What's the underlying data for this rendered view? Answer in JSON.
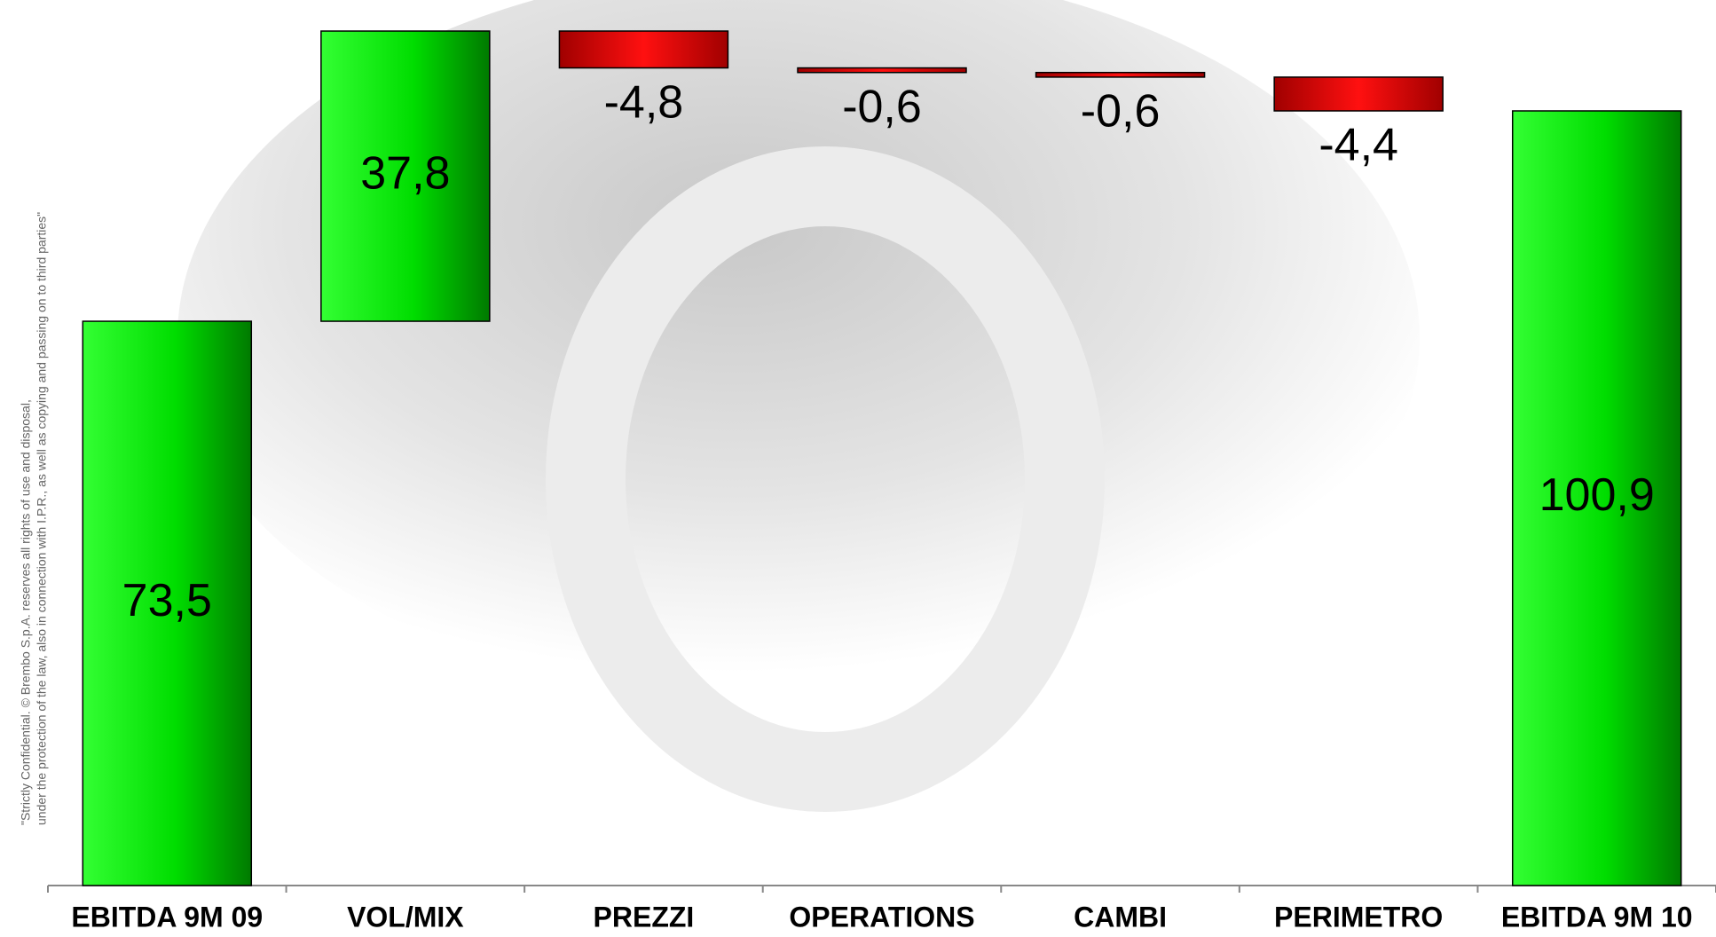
{
  "notice": [
    "\"Strictly Confidential. © Brembo S.p.A. reserves all rights of use and disposal,",
    "under the protection of the law, also in connection with I.P.R., as well as copying and passing on to third parties\""
  ],
  "chart_data": {
    "type": "waterfall",
    "categories": [
      "EBITDA 9M 09",
      "VOL/MIX",
      "PREZZI",
      "OPERATIONS",
      "CAMBI",
      "PERIMETRO",
      "EBITDA 9M 10"
    ],
    "values": [
      73.5,
      37.8,
      -4.8,
      -0.6,
      -0.6,
      -4.4,
      100.9
    ],
    "value_labels": [
      "73,5",
      "37,8",
      "-4,8",
      "-0,6",
      "-0,6",
      "-4,4",
      "100,9"
    ],
    "colors": {
      "increase": "#00e000",
      "decrease": "#e00000"
    }
  }
}
